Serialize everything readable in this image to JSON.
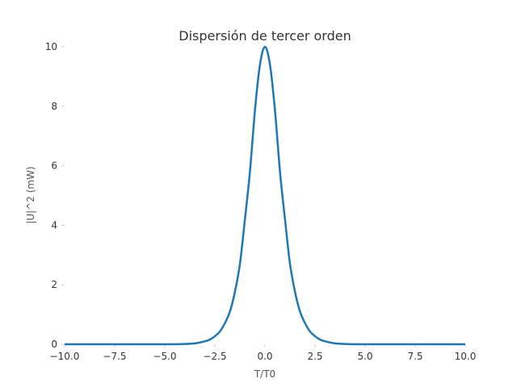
{
  "chart_data": {
    "type": "line",
    "title": "Dispersión de tercer orden",
    "xlabel": "T/T0",
    "ylabel": "|U|^2 (mW)",
    "xlim": [
      -10,
      10
    ],
    "ylim": [
      0,
      10
    ],
    "xticks": [
      -10.0,
      -7.5,
      -5.0,
      -2.5,
      0.0,
      2.5,
      5.0,
      7.5,
      10.0
    ],
    "xtick_labels": [
      "−10.0",
      "−7.5",
      "−5.0",
      "−2.5",
      "0.0",
      "2.5",
      "5.0",
      "7.5",
      "10.0"
    ],
    "yticks": [
      0,
      2,
      4,
      6,
      8,
      10
    ],
    "ytick_labels": [
      "0",
      "2",
      "4",
      "6",
      "8",
      "10"
    ],
    "grid": false,
    "series": [
      {
        "color": "#1f77b4",
        "x": [
          -10,
          -5,
          -4,
          -3.5,
          -3,
          -2.75,
          -2.5,
          -2.25,
          -2,
          -1.75,
          -1.5,
          -1.25,
          -1,
          -0.75,
          -0.5,
          -0.25,
          0,
          0.25,
          0.5,
          0.75,
          1,
          1.25,
          1.5,
          1.75,
          2,
          2.25,
          2.5,
          2.75,
          3,
          3.5,
          4,
          5,
          10
        ],
        "y": [
          0,
          0,
          0.01,
          0.03,
          0.1,
          0.16,
          0.27,
          0.43,
          0.71,
          1.1,
          1.76,
          2.7,
          4.2,
          5.8,
          7.86,
          9.4,
          10.0,
          9.4,
          7.86,
          5.8,
          4.2,
          2.7,
          1.76,
          1.1,
          0.71,
          0.43,
          0.27,
          0.16,
          0.1,
          0.03,
          0.01,
          0,
          0
        ]
      }
    ]
  }
}
